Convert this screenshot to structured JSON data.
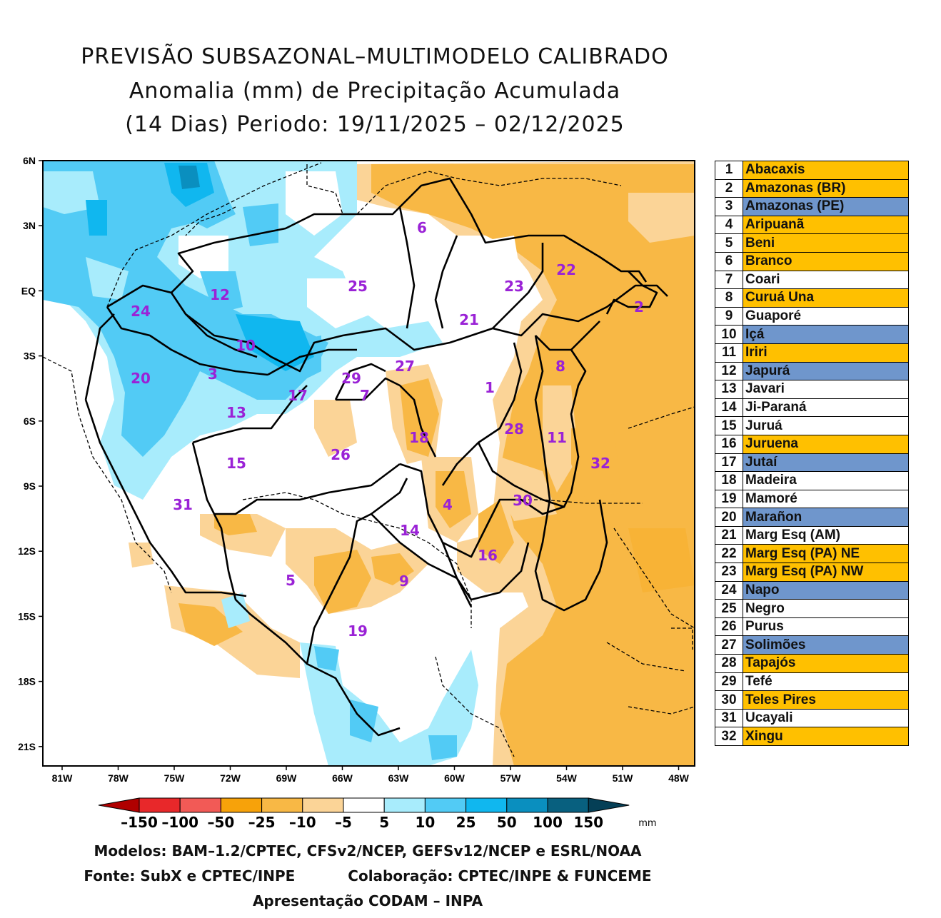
{
  "header": {
    "line1": "PREVISÃO SUBSAZONAL–MULTIMODELO CALIBRADO",
    "line2": "Anomalia (mm) de Precipitação Acumulada",
    "line3": "(14 Dias) Periodo: 19/11/2025 – 02/12/2025"
  },
  "map": {
    "lat_labels": [
      "6N",
      "3N",
      "EQ",
      "3S",
      "6S",
      "9S",
      "12S",
      "15S",
      "18S",
      "21S"
    ],
    "lon_labels": [
      "81W",
      "78W",
      "75W",
      "72W",
      "69W",
      "66W",
      "63W",
      "60W",
      "57W",
      "54W",
      "51W",
      "48W"
    ],
    "basin_labels": [
      "1",
      "2",
      "3",
      "4",
      "5",
      "6",
      "7",
      "8",
      "9",
      "10",
      "11",
      "12",
      "13",
      "14",
      "15",
      "16",
      "17",
      "18",
      "19",
      "20",
      "21",
      "22",
      "23",
      "24",
      "25",
      "26",
      "27",
      "28",
      "29",
      "30",
      "31",
      "32"
    ]
  },
  "colorbar": {
    "ticks": [
      "–150",
      "–100",
      "–50",
      "–25",
      "–10",
      "–5",
      "5",
      "10",
      "25",
      "50",
      "100",
      "150"
    ],
    "unit": "mm",
    "colors": [
      "#b00000",
      "#e8282a",
      "#f25a56",
      "#f7a20a",
      "#f8b845",
      "#fbd497",
      "#ffffff",
      "#a8ecfc",
      "#52cbf5",
      "#10b7ef",
      "#0a8fbf",
      "#08607f",
      "#053f56"
    ]
  },
  "legend": [
    {
      "num": "1",
      "name": "Abacaxis",
      "status": "dry"
    },
    {
      "num": "2",
      "name": "Amazonas (BR)",
      "status": "dry"
    },
    {
      "num": "3",
      "name": "Amazonas (PE)",
      "status": "wet"
    },
    {
      "num": "4",
      "name": "Aripuanã",
      "status": "dry"
    },
    {
      "num": "5",
      "name": "Beni",
      "status": "dry"
    },
    {
      "num": "6",
      "name": "Branco",
      "status": "dry"
    },
    {
      "num": "7",
      "name": "Coari",
      "status": "neutral"
    },
    {
      "num": "8",
      "name": "Curuá Una",
      "status": "dry"
    },
    {
      "num": "9",
      "name": "Guaporé",
      "status": "neutral"
    },
    {
      "num": "10",
      "name": "Içá",
      "status": "wet"
    },
    {
      "num": "11",
      "name": "Iriri",
      "status": "dry"
    },
    {
      "num": "12",
      "name": "Japurá",
      "status": "wet"
    },
    {
      "num": "13",
      "name": "Javari",
      "status": "neutral"
    },
    {
      "num": "14",
      "name": "Ji-Paraná",
      "status": "neutral"
    },
    {
      "num": "15",
      "name": "Juruá",
      "status": "neutral"
    },
    {
      "num": "16",
      "name": "Juruena",
      "status": "dry"
    },
    {
      "num": "17",
      "name": "Jutaí",
      "status": "wet"
    },
    {
      "num": "18",
      "name": "Madeira",
      "status": "neutral"
    },
    {
      "num": "19",
      "name": "Mamoré",
      "status": "neutral"
    },
    {
      "num": "20",
      "name": "Marañon",
      "status": "wet"
    },
    {
      "num": "21",
      "name": "Marg Esq (AM)",
      "status": "neutral"
    },
    {
      "num": "22",
      "name": "Marg Esq (PA) NE",
      "status": "dry"
    },
    {
      "num": "23",
      "name": "Marg Esq (PA) NW",
      "status": "dry"
    },
    {
      "num": "24",
      "name": "Napo",
      "status": "wet"
    },
    {
      "num": "25",
      "name": "Negro",
      "status": "neutral"
    },
    {
      "num": "26",
      "name": "Purus",
      "status": "neutral"
    },
    {
      "num": "27",
      "name": "Solimões",
      "status": "wet"
    },
    {
      "num": "28",
      "name": "Tapajós",
      "status": "dry"
    },
    {
      "num": "29",
      "name": "Tefé",
      "status": "neutral"
    },
    {
      "num": "30",
      "name": "Teles Pires",
      "status": "dry"
    },
    {
      "num": "31",
      "name": "Ucayali",
      "status": "neutral"
    },
    {
      "num": "32",
      "name": "Xingu",
      "status": "dry"
    }
  ],
  "status_colors": {
    "dry": "#ffc000",
    "wet": "#6f96cc",
    "neutral": "#ffffff"
  },
  "credits": {
    "models": "Modelos: BAM–1.2/CPTEC, CFSv2/NCEP, GEFSv12/NCEP e ESRL/NOAA",
    "source": "Fonte: SubX e CPTEC/INPE",
    "collab": "Colaboração: CPTEC/INPE & FUNCEME",
    "presentation": "Apresentação CODAM – INPA"
  }
}
